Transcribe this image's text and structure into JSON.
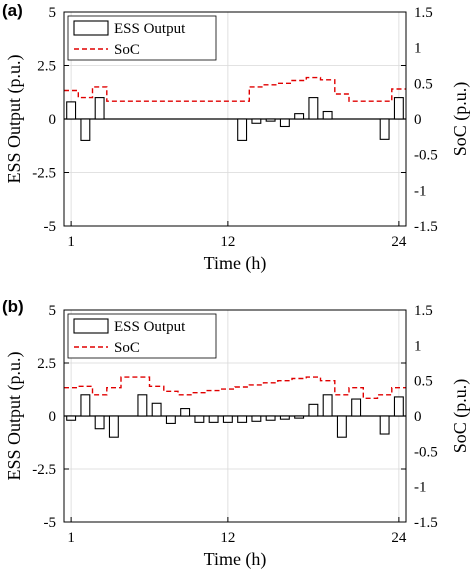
{
  "colors": {
    "bars": "#000000",
    "soc": "#e00000",
    "grid": "#d9d9d9"
  },
  "chart_data": [
    {
      "type": "bar",
      "panel_label": "(a)",
      "x": [
        1,
        2,
        3,
        4,
        5,
        6,
        7,
        8,
        9,
        10,
        11,
        12,
        13,
        14,
        15,
        16,
        17,
        18,
        19,
        20,
        21,
        22,
        23,
        24
      ],
      "xticks": [
        "1",
        "12",
        "24"
      ],
      "xlabel": "Time (h)",
      "ylabel": "ESS Output (p.u.)",
      "y2label": "SoC (p.u.)",
      "ylim": [
        -5,
        5
      ],
      "y2lim": [
        -1.5,
        1.5
      ],
      "yticks": [
        "-5",
        "-2.5",
        "0",
        "2.5",
        "5"
      ],
      "y2ticks": [
        "-1.5",
        "-1",
        "-0.5",
        "0",
        "0.5",
        "1",
        "1.5"
      ],
      "grid": true,
      "legend": [
        "ESS Output",
        "SoC"
      ],
      "legend_position": "top-left",
      "series": [
        {
          "name": "ESS Output",
          "type": "bar",
          "axis": "left",
          "values": [
            0.8,
            -1.0,
            1.0,
            0,
            0,
            0,
            0,
            0,
            0,
            0,
            0,
            0,
            -1.0,
            -0.2,
            -0.1,
            -0.35,
            0.25,
            1.0,
            0.35,
            0,
            0,
            0,
            -0.95,
            1.0
          ]
        },
        {
          "name": "SoC",
          "type": "step",
          "axis": "right",
          "values": [
            0.4,
            0.3,
            0.45,
            0.25,
            0.25,
            0.25,
            0.25,
            0.25,
            0.25,
            0.25,
            0.25,
            0.25,
            0.25,
            0.45,
            0.48,
            0.5,
            0.54,
            0.58,
            0.55,
            0.35,
            0.25,
            0.25,
            0.25,
            0.42
          ]
        }
      ]
    },
    {
      "type": "bar",
      "panel_label": "(b)",
      "x": [
        1,
        2,
        3,
        4,
        5,
        6,
        7,
        8,
        9,
        10,
        11,
        12,
        13,
        14,
        15,
        16,
        17,
        18,
        19,
        20,
        21,
        22,
        23,
        24
      ],
      "xticks": [
        "1",
        "12",
        "24"
      ],
      "xlabel": "Time (h)",
      "ylabel": "ESS Output (p.u.)",
      "y2label": "SoC (p.u.)",
      "ylim": [
        -5,
        5
      ],
      "y2lim": [
        -1.5,
        1.5
      ],
      "yticks": [
        "-5",
        "-2.5",
        "0",
        "2.5",
        "5"
      ],
      "y2ticks": [
        "-1.5",
        "-1",
        "-0.5",
        "0",
        "0.5",
        "1",
        "1.5"
      ],
      "grid": true,
      "legend": [
        "ESS Output",
        "SoC"
      ],
      "legend_position": "top-left",
      "series": [
        {
          "name": "ESS Output",
          "type": "bar",
          "axis": "left",
          "values": [
            -0.2,
            1.0,
            -0.6,
            -1.0,
            0,
            1.0,
            0.6,
            -0.35,
            0.35,
            -0.3,
            -0.3,
            -0.3,
            -0.3,
            -0.25,
            -0.2,
            -0.15,
            -0.1,
            0.55,
            1.0,
            -1.0,
            0.8,
            0,
            -0.85,
            0.9
          ]
        },
        {
          "name": "SoC",
          "type": "step",
          "axis": "right",
          "values": [
            0.4,
            0.42,
            0.3,
            0.4,
            0.55,
            0.55,
            0.42,
            0.35,
            0.3,
            0.33,
            0.36,
            0.38,
            0.41,
            0.44,
            0.47,
            0.5,
            0.53,
            0.55,
            0.5,
            0.3,
            0.4,
            0.25,
            0.3,
            0.4
          ]
        }
      ]
    }
  ]
}
